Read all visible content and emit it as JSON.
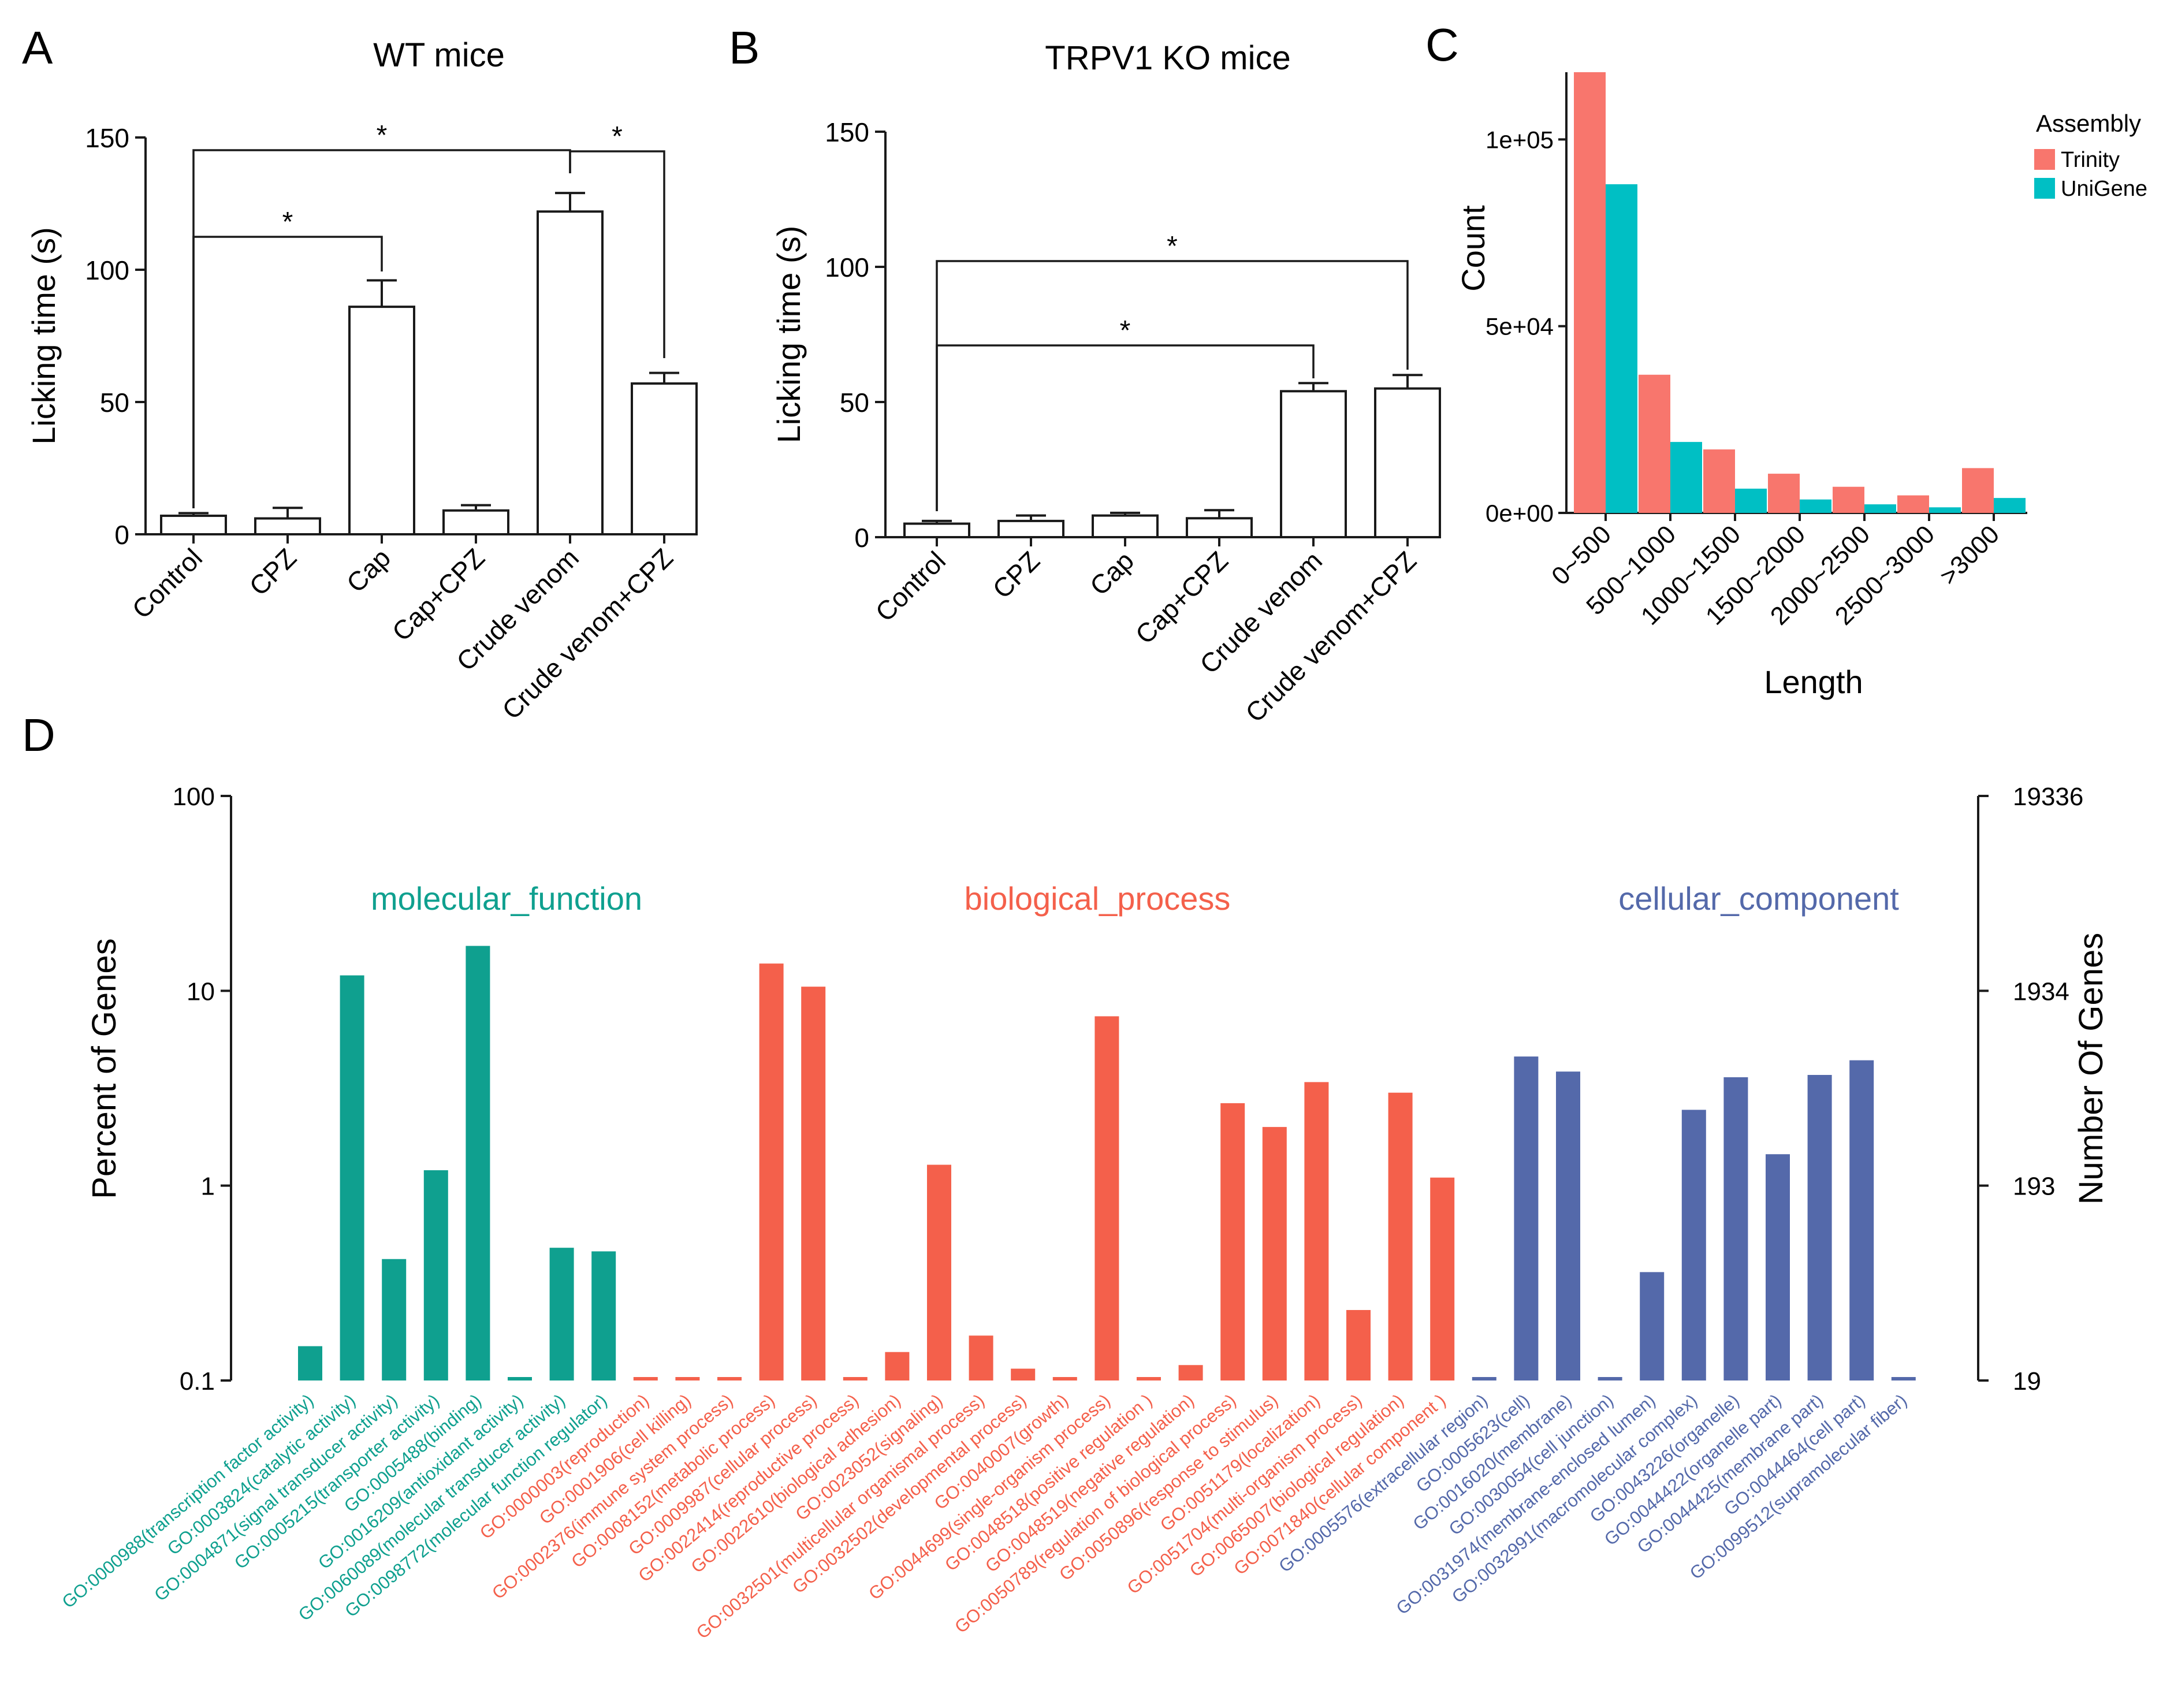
{
  "figure": {
    "panel_labels": [
      "A",
      "B",
      "C",
      "D"
    ]
  },
  "chart_data": [
    {
      "id": "A",
      "type": "bar",
      "title": "WT mice",
      "xlabel": "",
      "ylabel": "Licking time (s)",
      "ylim": [
        0,
        150
      ],
      "yticks": [
        "0",
        "50",
        "100",
        "150"
      ],
      "categories": [
        "Control",
        "CPZ",
        "Cap",
        "Cap+CPZ",
        "Crude venom",
        "Crude venom+CPZ"
      ],
      "values": [
        7,
        6,
        86,
        9,
        122,
        57
      ],
      "errors": [
        1,
        4,
        10,
        2,
        7,
        4
      ],
      "significance": [
        {
          "from": 0,
          "to": 2,
          "label": "*"
        },
        {
          "from": 0,
          "to": 4,
          "label": "*"
        },
        {
          "from": 4,
          "to": 5,
          "label": "*"
        }
      ]
    },
    {
      "id": "B",
      "type": "bar",
      "title": "TRPV1 KO mice",
      "xlabel": "",
      "ylabel": "Licking time (s)",
      "ylim": [
        0,
        150
      ],
      "yticks": [
        "0",
        "50",
        "100",
        "150"
      ],
      "categories": [
        "Control",
        "CPZ",
        "Cap",
        "Cap+CPZ",
        "Crude venom",
        "Crude venom+CPZ"
      ],
      "values": [
        5,
        6,
        8,
        7,
        54,
        55
      ],
      "errors": [
        1,
        2,
        1,
        3,
        3,
        5
      ],
      "significance": [
        {
          "from": 0,
          "to": 4,
          "label": "*"
        },
        {
          "from": 0,
          "to": 5,
          "label": "*"
        }
      ]
    },
    {
      "id": "C",
      "type": "bar",
      "title": "",
      "xlabel": "Length",
      "ylabel": "Count",
      "ylim": [
        0,
        118000
      ],
      "yticks": [
        {
          "value": 0,
          "label": "0e+00"
        },
        {
          "value": 50000,
          "label": "5e+04"
        },
        {
          "value": 100000,
          "label": "1e+05"
        }
      ],
      "categories": [
        "0~500",
        "500~1000",
        "1000~1500",
        "1500~2000",
        "2000~2500",
        "2500~3000",
        ">3000"
      ],
      "legend_title": "Assembly",
      "series": [
        {
          "name": "Trinity",
          "color": "#f8766d",
          "values": [
            118000,
            37000,
            17000,
            10500,
            7000,
            4700,
            12000
          ]
        },
        {
          "name": "UniGene",
          "color": "#00bfc4",
          "values": [
            88000,
            19000,
            6500,
            3600,
            2300,
            1500,
            4000
          ]
        }
      ]
    },
    {
      "id": "D",
      "type": "bar",
      "scale": "log",
      "ylabel": "Percent of Genes",
      "ylabel_right": "Number Of Genes",
      "ylim": [
        0.1,
        100
      ],
      "yticks": [
        "0.1",
        "1",
        "10",
        "100"
      ],
      "yticks_right": [
        "19",
        "193",
        "1934",
        "19336"
      ],
      "groups": [
        {
          "name": "molecular_function",
          "color": "#0fa08f"
        },
        {
          "name": "biological_process",
          "color": "#f4604b"
        },
        {
          "name": "cellular_component",
          "color": "#5469aa"
        }
      ],
      "categories": [
        {
          "label": "GO:0000988(transcription factor activity)",
          "group": 0,
          "value": 0.15
        },
        {
          "label": "GO:0003824(catalytic activity)",
          "group": 0,
          "value": 12
        },
        {
          "label": "GO:0004871(signal transducer activity)",
          "group": 0,
          "value": 0.42
        },
        {
          "label": "GO:0005215(transporter activity)",
          "group": 0,
          "value": 1.2
        },
        {
          "label": "GO:0005488(binding)",
          "group": 0,
          "value": 17
        },
        {
          "label": "GO:0016209(antioxidant activity)",
          "group": 0,
          "value": 0.1
        },
        {
          "label": "GO:0060089(molecular transducer activity)",
          "group": 0,
          "value": 0.48
        },
        {
          "label": "GO:0098772(molecular function regulator)",
          "group": 0,
          "value": 0.46
        },
        {
          "label": "GO:0000003(reproduction)",
          "group": 1,
          "value": 0.1
        },
        {
          "label": "GO:0001906(cell killing)",
          "group": 1,
          "value": 0.1
        },
        {
          "label": "GO:0002376(immune system process)",
          "group": 1,
          "value": 0.1
        },
        {
          "label": "GO:0008152(metabolic process)",
          "group": 1,
          "value": 13.8
        },
        {
          "label": "GO:0009987(cellular process)",
          "group": 1,
          "value": 10.5
        },
        {
          "label": "GO:0022414(reproductive process)",
          "group": 1,
          "value": 0.1
        },
        {
          "label": "GO:0022610(biological adhesion)",
          "group": 1,
          "value": 0.14
        },
        {
          "label": "GO:0023052(signaling)",
          "group": 1,
          "value": 1.28
        },
        {
          "label": "GO:0032501(multicellular organismal process)",
          "group": 1,
          "value": 0.17
        },
        {
          "label": "GO:0032502(developmental process)",
          "group": 1,
          "value": 0.115
        },
        {
          "label": "GO:0040007(growth)",
          "group": 1,
          "value": 0.1
        },
        {
          "label": "GO:0044699(single-organism process)",
          "group": 1,
          "value": 7.4
        },
        {
          "label": "GO:0048518(positive regulation )",
          "group": 1,
          "value": 0.1
        },
        {
          "label": "GO:0048519(negative regulation)",
          "group": 1,
          "value": 0.12
        },
        {
          "label": "GO:0050789(regulation of biological process)",
          "group": 1,
          "value": 2.65
        },
        {
          "label": "GO:0050896(response to stimulus)",
          "group": 1,
          "value": 2.0
        },
        {
          "label": "GO:0051179(localization)",
          "group": 1,
          "value": 3.4
        },
        {
          "label": "GO:0051704(multi-organism process)",
          "group": 1,
          "value": 0.23
        },
        {
          "label": "GO:0065007(biological regulation)",
          "group": 1,
          "value": 3.0
        },
        {
          "label": "GO:0071840(cellular component )",
          "group": 1,
          "value": 1.1
        },
        {
          "label": "GO:0005576(extracellular region)",
          "group": 2,
          "value": 0.1
        },
        {
          "label": "GO:0005623(cell)",
          "group": 2,
          "value": 4.6
        },
        {
          "label": "GO:0016020(membrane)",
          "group": 2,
          "value": 3.85
        },
        {
          "label": "GO:0030054(cell junction)",
          "group": 2,
          "value": 0.1
        },
        {
          "label": "GO:0031974(membrane-enclosed lumen)",
          "group": 2,
          "value": 0.36
        },
        {
          "label": "GO:0032991(macromolecular complex)",
          "group": 2,
          "value": 2.45
        },
        {
          "label": "GO:0043226(organelle)",
          "group": 2,
          "value": 3.6
        },
        {
          "label": "GO:0044422(organelle part)",
          "group": 2,
          "value": 1.45
        },
        {
          "label": "GO:0044425(membrane part)",
          "group": 2,
          "value": 3.7
        },
        {
          "label": "GO:0044464(cell part)",
          "group": 2,
          "value": 4.4
        },
        {
          "label": "GO:0099512(supramolecular fiber)",
          "group": 2,
          "value": 0.1
        }
      ]
    }
  ]
}
